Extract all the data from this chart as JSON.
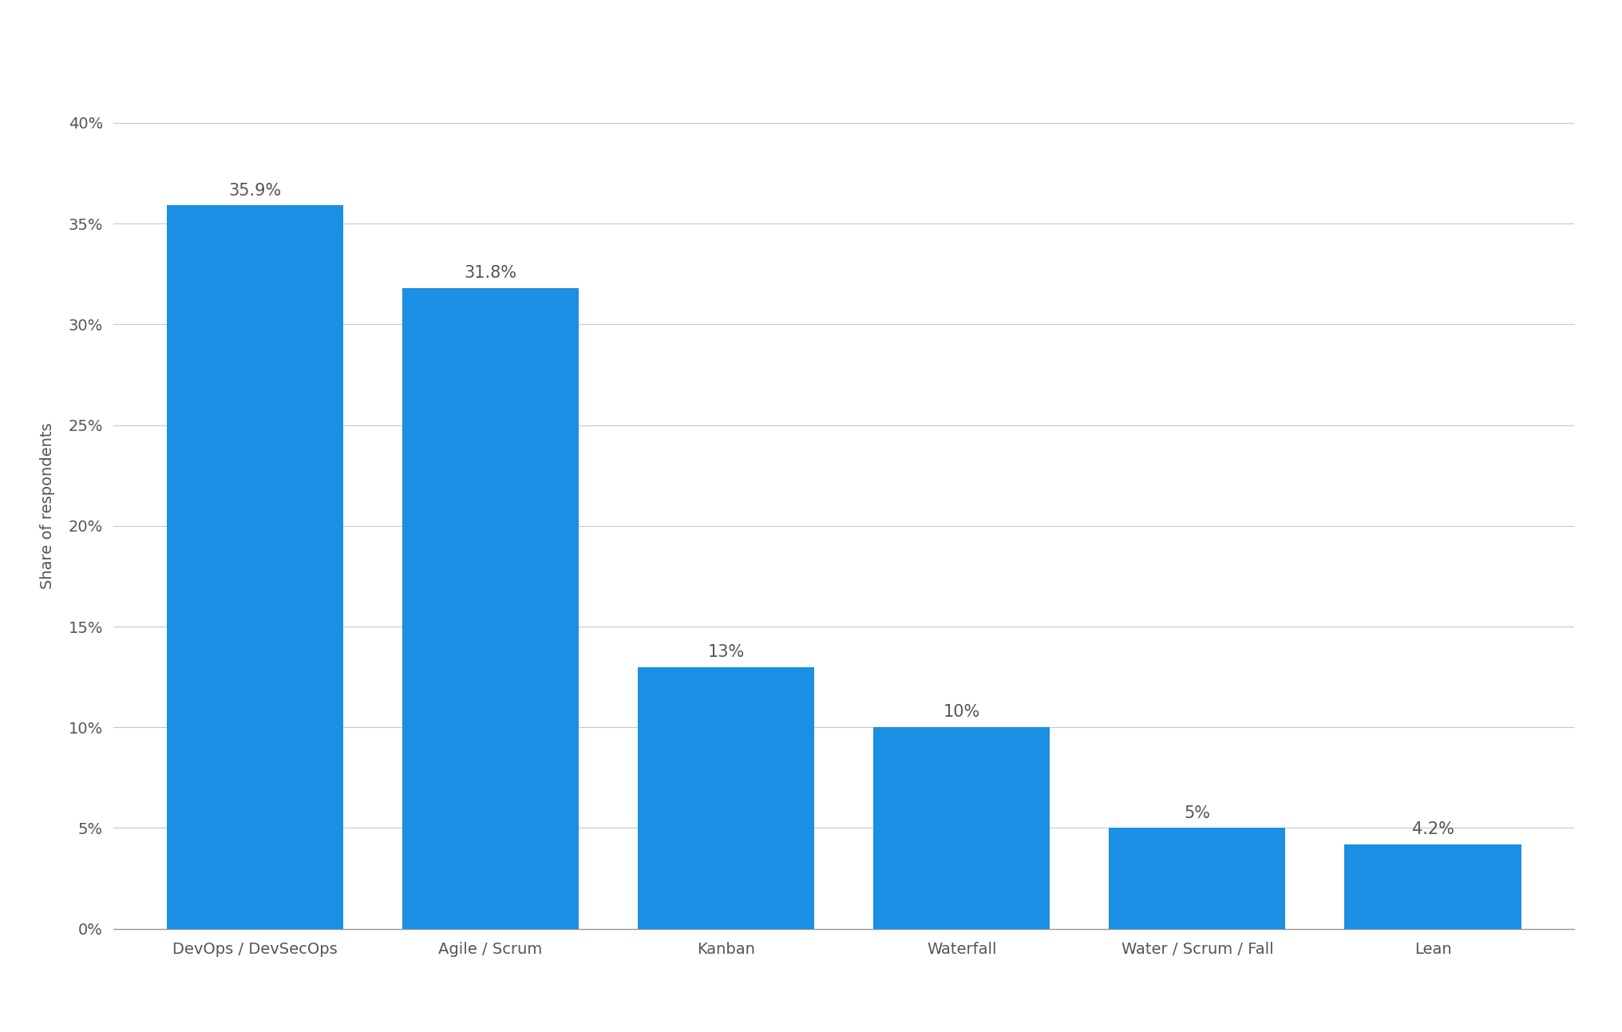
{
  "categories": [
    "DevOps / DevSecOps",
    "Agile / Scrum",
    "Kanban",
    "Waterfall",
    "Water / Scrum / Fall",
    "Lean"
  ],
  "values": [
    35.9,
    31.8,
    13.0,
    10.0,
    5.0,
    4.2
  ],
  "labels": [
    "35.9%",
    "31.8%",
    "13%",
    "10%",
    "5%",
    "4.2%"
  ],
  "bar_color": "#1a8fe3",
  "background_color": "#ffffff",
  "ylabel": "Share of respondents",
  "ylim": [
    0,
    42
  ],
  "yticks": [
    0,
    5,
    10,
    15,
    20,
    25,
    30,
    35,
    40
  ],
  "ytick_labels": [
    "0%",
    "5%",
    "10%",
    "15%",
    "20%",
    "25%",
    "30%",
    "35%",
    "40%"
  ],
  "grid_color": "#c8c8c8",
  "label_fontsize": 15,
  "tick_fontsize": 14,
  "ylabel_fontsize": 14,
  "bar_width": 0.75,
  "label_color": "#555555",
  "tick_color": "#555555"
}
